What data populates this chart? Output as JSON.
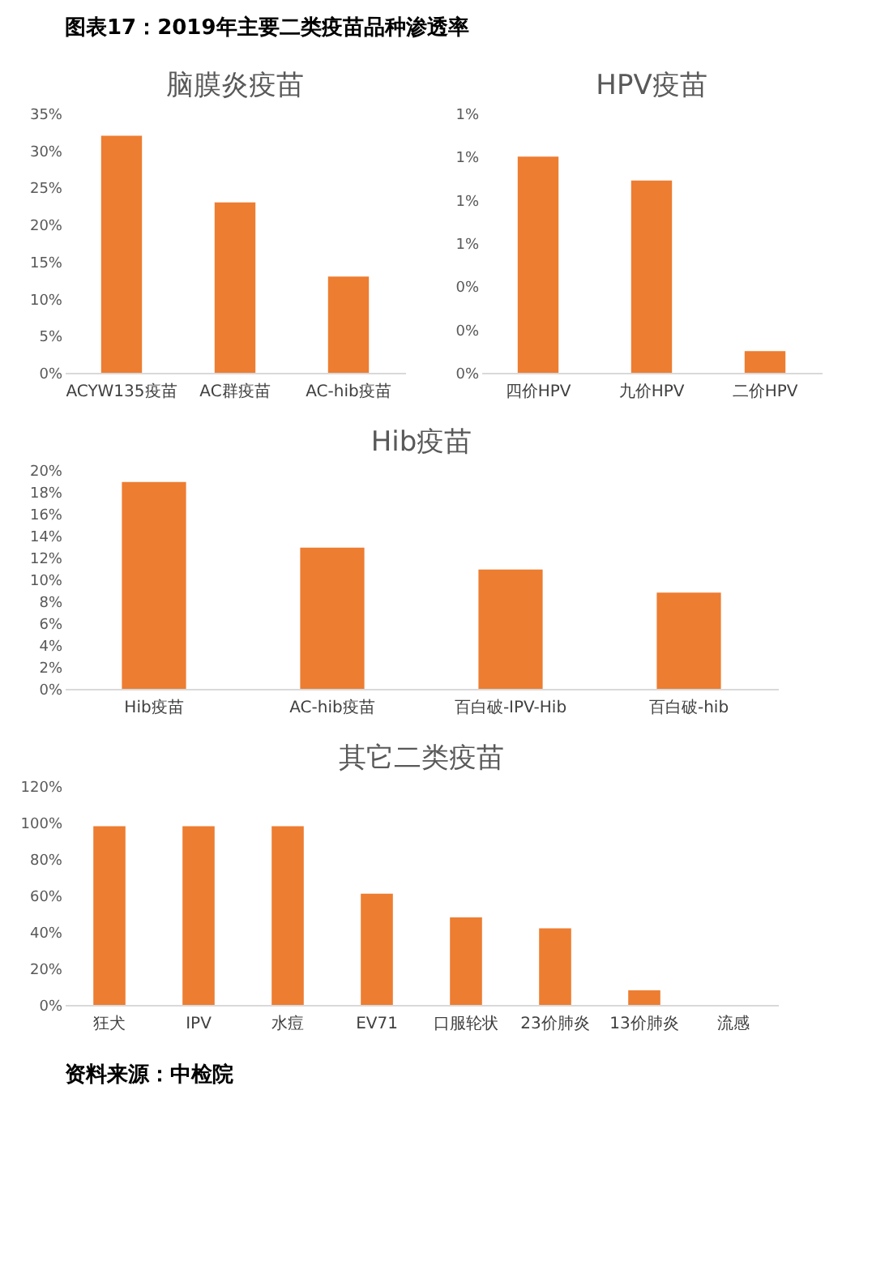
{
  "chart_data": [
    {
      "type": "other",
      "title": "图表17：2019年主要二类疫苗品种渗透率"
    },
    {
      "type": "bar",
      "title": "脑膜炎疫苗",
      "categories": [
        "ACYW135疫苗",
        "AC群疫苗",
        "AC-hib疫苗"
      ],
      "values": [
        32,
        23,
        13
      ],
      "color": "#ed7d31",
      "ylim": [
        0,
        35
      ],
      "yticks": [
        {
          "value": 0,
          "label": "0%"
        },
        {
          "value": 5,
          "label": "5%"
        },
        {
          "value": 10,
          "label": "10%"
        },
        {
          "value": 15,
          "label": "15%"
        },
        {
          "value": 20,
          "label": "20%"
        },
        {
          "value": 25,
          "label": "25%"
        },
        {
          "value": 30,
          "label": "30%"
        },
        {
          "value": 35,
          "label": "35%"
        }
      ]
    },
    {
      "type": "bar",
      "title": "HPV疫苗",
      "categories": [
        "四价HPV",
        "九价HPV",
        "二价HPV"
      ],
      "values": [
        1.0,
        0.89,
        0.1
      ],
      "color": "#ed7d31",
      "ylim": [
        0,
        1.2
      ],
      "yticks": [
        {
          "value": 0,
          "label": "0%"
        },
        {
          "value": 0.2,
          "label": "0%"
        },
        {
          "value": 0.4,
          "label": "0%"
        },
        {
          "value": 0.6,
          "label": "1%"
        },
        {
          "value": 0.8,
          "label": "1%"
        },
        {
          "value": 1.0,
          "label": "1%"
        },
        {
          "value": 1.2,
          "label": "1%"
        }
      ]
    },
    {
      "type": "bar",
      "title": "Hib疫苗",
      "categories": [
        "Hib疫苗",
        "AC-hib疫苗",
        "百白破-IPV-Hib",
        "百白破-hib"
      ],
      "values": [
        18.9,
        12.9,
        10.9,
        8.8
      ],
      "color": "#ed7d31",
      "ylim": [
        0,
        20
      ],
      "yticks": [
        {
          "value": 0,
          "label": "0%"
        },
        {
          "value": 2,
          "label": "2%"
        },
        {
          "value": 4,
          "label": "4%"
        },
        {
          "value": 6,
          "label": "6%"
        },
        {
          "value": 8,
          "label": "8%"
        },
        {
          "value": 10,
          "label": "10%"
        },
        {
          "value": 12,
          "label": "12%"
        },
        {
          "value": 14,
          "label": "14%"
        },
        {
          "value": 16,
          "label": "16%"
        },
        {
          "value": 18,
          "label": "18%"
        },
        {
          "value": 20,
          "label": "20%"
        }
      ]
    },
    {
      "type": "bar",
      "title": "其它二类疫苗",
      "categories": [
        "狂犬",
        "IPV",
        "水痘",
        "EV71",
        "口服轮状",
        "23价肺炎",
        "13价肺炎",
        "流感"
      ],
      "values": [
        98,
        98,
        98,
        61,
        48,
        42,
        8,
        0
      ],
      "color": "#ed7d31",
      "ylim": [
        0,
        120
      ],
      "yticks": [
        {
          "value": 0,
          "label": "0%"
        },
        {
          "value": 20,
          "label": "20%"
        },
        {
          "value": 40,
          "label": "40%"
        },
        {
          "value": 60,
          "label": "60%"
        },
        {
          "value": 80,
          "label": "80%"
        },
        {
          "value": 100,
          "label": "100%"
        },
        {
          "value": 120,
          "label": "120%"
        }
      ]
    },
    {
      "type": "other",
      "annotations": [
        "资料来源：中检院"
      ]
    }
  ]
}
